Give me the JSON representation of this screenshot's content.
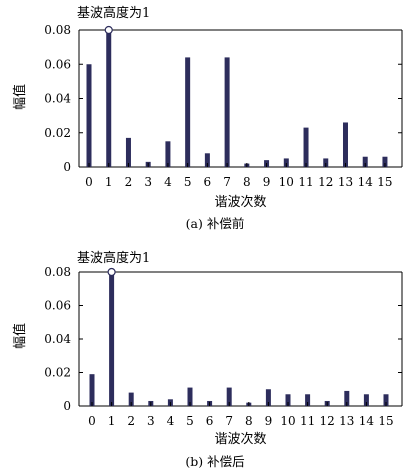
{
  "chart_data": [
    {
      "type": "bar",
      "annotation": "基波高度为1",
      "xlabel": "谐波次数",
      "ylabel": "幅值",
      "caption": "(a) 补偿前",
      "categories": [
        "0",
        "1",
        "2",
        "3",
        "4",
        "5",
        "6",
        "7",
        "8",
        "9",
        "10",
        "11",
        "12",
        "13",
        "14",
        "15"
      ],
      "values": [
        0.06,
        0.08,
        0.017,
        0.003,
        0.015,
        0.064,
        0.008,
        0.064,
        0.002,
        0.004,
        0.005,
        0.023,
        0.005,
        0.026,
        0.006,
        0.006
      ],
      "fundamental_marker": 1,
      "ylim": [
        0,
        0.08
      ],
      "yticks": [
        "0",
        "0.02",
        "0.04",
        "0.06",
        "0.08"
      ]
    },
    {
      "type": "bar",
      "annotation": "基波高度为1",
      "xlabel": "谐波次数",
      "ylabel": "幅值",
      "caption": "(b) 补偿后",
      "categories": [
        "0",
        "1",
        "2",
        "3",
        "4",
        "5",
        "6",
        "7",
        "8",
        "9",
        "10",
        "11",
        "12",
        "13",
        "14",
        "15"
      ],
      "values": [
        0.019,
        0.08,
        0.008,
        0.003,
        0.004,
        0.011,
        0.003,
        0.011,
        0.002,
        0.01,
        0.007,
        0.007,
        0.003,
        0.009,
        0.007,
        0.007
      ],
      "fundamental_marker": 1,
      "ylim": [
        0,
        0.08
      ],
      "yticks": [
        "0",
        "0.02",
        "0.04",
        "0.06",
        "0.08"
      ]
    }
  ],
  "colors": {
    "bar": "#2d2d5c",
    "axis": "#000000"
  }
}
